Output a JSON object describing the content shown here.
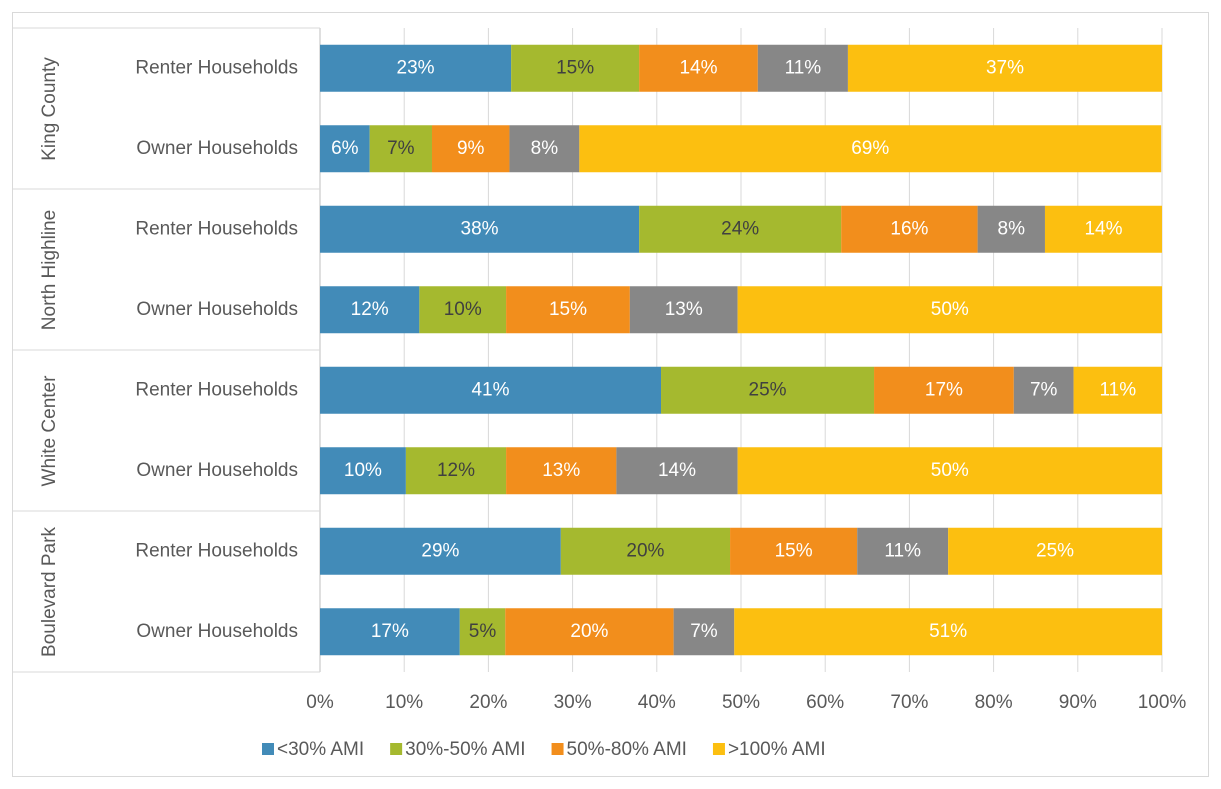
{
  "chart_data": {
    "type": "stacked_barh",
    "groups": [
      {
        "name": "King County",
        "rows": 2
      },
      {
        "name": "North Highline",
        "rows": 2
      },
      {
        "name": "White Center",
        "rows": 2
      },
      {
        "name": "Boulevard Park",
        "rows": 2
      }
    ],
    "categories": [
      "Renter Households",
      "Owner Households",
      "Renter Households",
      "Owner Households",
      "Renter Households",
      "Owner Households",
      "Renter Households",
      "Owner Households"
    ],
    "series": [
      {
        "name": "<30% AMI",
        "color": "#428bb8",
        "label_color": "#ffffff",
        "values": [
          22.7,
          5.9,
          37.9,
          11.8,
          40.5,
          10.2,
          28.6,
          16.6
        ],
        "value_labels": [
          "23%",
          "6%",
          "38%",
          "12%",
          "41%",
          "10%",
          "29%",
          "17%"
        ]
      },
      {
        "name": "30%-50% AMI",
        "color": "#a5b92f",
        "label_color": "#404040",
        "values": [
          15.2,
          7.4,
          24.0,
          10.3,
          25.3,
          11.9,
          20.1,
          5.4
        ],
        "value_labels": [
          "15%",
          "7%",
          "24%",
          "10%",
          "25%",
          "12%",
          "20%",
          "5%"
        ]
      },
      {
        "name": "50%-80% AMI",
        "color": "#f28e1c",
        "label_color": "#ffffff",
        "values": [
          14.1,
          9.2,
          16.2,
          14.7,
          16.6,
          13.1,
          15.1,
          20.0
        ],
        "value_labels": [
          "14%",
          "9%",
          "16%",
          "15%",
          "17%",
          "13%",
          "15%",
          "20%"
        ]
      },
      {
        "color": "#878787",
        "label_color": "#ffffff",
        "values": [
          10.7,
          8.3,
          8.0,
          12.8,
          7.1,
          14.4,
          10.8,
          7.2
        ],
        "value_labels": [
          "11%",
          "8%",
          "8%",
          "13%",
          "7%",
          "14%",
          "11%",
          "7%"
        ]
      },
      {
        "name": ">100% AMI",
        "color": "#fcbf10",
        "label_color": "#ffffff",
        "values": [
          37.3,
          69.1,
          13.9,
          50.4,
          10.5,
          50.4,
          25.4,
          50.8
        ],
        "value_labels": [
          "37%",
          "69%",
          "14%",
          "50%",
          "11%",
          "50%",
          "25%",
          "51%"
        ]
      }
    ],
    "xlim": [
      0,
      100
    ],
    "xticks": [
      {
        "value": 0,
        "label": "0%"
      },
      {
        "value": 10,
        "label": "10%"
      },
      {
        "value": 20,
        "label": "20%"
      },
      {
        "value": 30,
        "label": "30%"
      },
      {
        "value": 40,
        "label": "40%"
      },
      {
        "value": 50,
        "label": "50%"
      },
      {
        "value": 60,
        "label": "60%"
      },
      {
        "value": 70,
        "label": "70%"
      },
      {
        "value": 80,
        "label": "80%"
      },
      {
        "value": 90,
        "label": "90%"
      },
      {
        "value": 100,
        "label": "100%"
      }
    ],
    "grid": true,
    "legend": "bottom"
  }
}
